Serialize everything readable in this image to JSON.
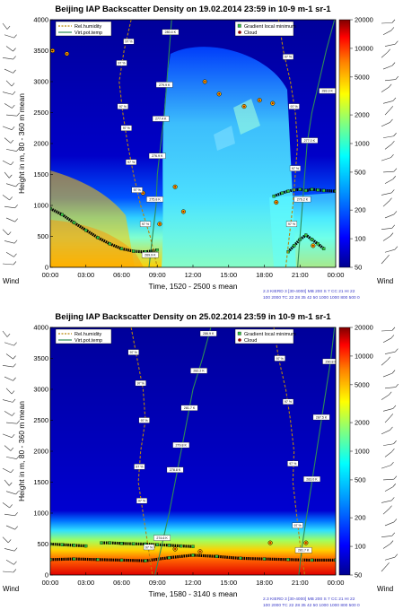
{
  "colors": {
    "relHumidity": "#b8860b",
    "virtPotTemp": "#2e8b57",
    "gradientMarker": "#2fbf3f",
    "cloudMarker": "#8b0000",
    "layerLine": "#000000"
  },
  "chart_data": [
    {
      "type": "heatmap",
      "title": "Beijing IAP Backscatter Density on 19.02.2014 23:59 in 10-9 m-1 sr-1",
      "xlabel": "Time, 1520 - 2500 s mean",
      "ylabel": "Height in m, 80 - 360 m mean",
      "xticks": [
        "00:00",
        "03:00",
        "06:00",
        "09:00",
        "12:00",
        "15:00",
        "18:00",
        "21:00",
        "00:00"
      ],
      "yticks": [
        0,
        500,
        1000,
        1500,
        2000,
        2500,
        3000,
        3500,
        4000
      ],
      "xlim_hours": [
        0,
        24
      ],
      "ylim": [
        0,
        4000
      ],
      "colorbar": {
        "ticks": [
          20000,
          10000,
          5000,
          2000,
          1000,
          500,
          200,
          100,
          50
        ],
        "scale": "log",
        "range": [
          50,
          20000
        ]
      },
      "legend": {
        "placement": "top",
        "items": [
          "Rel.humidity",
          "Virt.pot.temp",
          "Gradient local minimum",
          "Cloud"
        ]
      },
      "wind_label_left": "Wind",
      "wind_label_right": "Wind",
      "footer": [
        "2.3 KIERD 3 [30-4000] MB 200  S 7 CC 21 HI 22",
        "100 2000  TC 22 28 35 42 50 1000 1000 800 500 0"
      ],
      "series": [
        {
          "name": "Rel.humidity",
          "x": [
            6.8,
            6.2,
            5.8,
            6.1,
            6.5,
            7.0,
            7.6,
            8.4,
            9.0
          ],
          "y": [
            4000,
            3500,
            3000,
            2500,
            2000,
            1500,
            1000,
            500,
            0
          ]
        },
        {
          "name": "Virt.pot.temp",
          "x": [
            10.2,
            10.0,
            9.8,
            9.6,
            9.3,
            9.0,
            8.9,
            8.6,
            8.3
          ],
          "y": [
            4000,
            3500,
            3000,
            2500,
            2000,
            1500,
            1000,
            500,
            0
          ]
        },
        {
          "name": "Rel.humidity",
          "x": [
            19.2,
            19.6,
            20.2,
            20.6,
            20.8,
            20.6,
            20.4,
            20.1,
            19.8
          ],
          "y": [
            4000,
            3500,
            3000,
            2500,
            2000,
            1500,
            1000,
            500,
            0
          ]
        },
        {
          "name": "Virt.pot.temp",
          "x": [
            23.9,
            23.2,
            22.6,
            22.0,
            21.6,
            21.4,
            21.2,
            21.0,
            20.8
          ],
          "y": [
            4000,
            3500,
            3000,
            2500,
            2000,
            1500,
            1000,
            500,
            0
          ]
        }
      ],
      "layer_line": {
        "x": [
          0,
          1,
          2,
          3,
          4,
          5,
          6,
          7,
          8,
          9
        ],
        "y": [
          950,
          850,
          720,
          600,
          480,
          380,
          300,
          260,
          250,
          280
        ]
      },
      "layer_line_b": {
        "x": [
          18.8,
          19.5,
          20,
          20.5,
          21,
          21.5,
          22,
          22.5,
          23,
          24
        ],
        "y": [
          1150,
          1200,
          1230,
          1250,
          1260,
          1240,
          1260,
          1250,
          1240,
          1230
        ]
      },
      "layer_line_c": {
        "x": [
          20,
          20.5,
          21,
          21.5,
          22,
          22.5,
          23
        ],
        "y": [
          250,
          350,
          450,
          520,
          450,
          380,
          300
        ]
      },
      "cloud_points": [
        {
          "x": 7.8,
          "y": 1200
        },
        {
          "x": 8.3,
          "y": 1100
        },
        {
          "x": 9.2,
          "y": 700
        },
        {
          "x": 10.5,
          "y": 1300
        },
        {
          "x": 11.2,
          "y": 900
        },
        {
          "x": 13.0,
          "y": 3000
        },
        {
          "x": 14.2,
          "y": 2800
        },
        {
          "x": 16.3,
          "y": 2600
        },
        {
          "x": 17.6,
          "y": 2700
        },
        {
          "x": 18.7,
          "y": 2650
        },
        {
          "x": 0.2,
          "y": 3500
        },
        {
          "x": 1.4,
          "y": 3450
        },
        {
          "x": 19.0,
          "y": 1050
        },
        {
          "x": 22.1,
          "y": 350
        }
      ],
      "annotations": [
        {
          "x": 6.6,
          "y": 3650,
          "text": "97 %"
        },
        {
          "x": 6.0,
          "y": 3300,
          "text": "97 %"
        },
        {
          "x": 6.1,
          "y": 2600,
          "text": "97 %"
        },
        {
          "x": 6.4,
          "y": 2250,
          "text": "97 %"
        },
        {
          "x": 6.8,
          "y": 1700,
          "text": "97 %"
        },
        {
          "x": 7.3,
          "y": 1250,
          "text": "97 %"
        },
        {
          "x": 8.0,
          "y": 700,
          "text": "97 %"
        },
        {
          "x": 10.1,
          "y": 3800,
          "text": "280.4 K"
        },
        {
          "x": 9.6,
          "y": 2950,
          "text": "279.9 K"
        },
        {
          "x": 9.3,
          "y": 2400,
          "text": "277.4 K"
        },
        {
          "x": 9.0,
          "y": 1800,
          "text": "276.9 K"
        },
        {
          "x": 8.8,
          "y": 1100,
          "text": "275.8 K"
        },
        {
          "x": 8.4,
          "y": 200,
          "text": "269.9 K"
        },
        {
          "x": 20.0,
          "y": 3400,
          "text": "97 %"
        },
        {
          "x": 20.5,
          "y": 2600,
          "text": "97 %"
        },
        {
          "x": 20.6,
          "y": 1600,
          "text": "97 %"
        },
        {
          "x": 20.3,
          "y": 700,
          "text": "97 %"
        },
        {
          "x": 23.3,
          "y": 2850,
          "text": "283.3 K"
        },
        {
          "x": 21.8,
          "y": 2050,
          "text": "277.0 K"
        },
        {
          "x": 21.2,
          "y": 1100,
          "text": "276.2 K"
        }
      ]
    },
    {
      "type": "heatmap",
      "title": "Beijing IAP Backscatter Density on 25.02.2014 23:59 in 10-9 m-1 sr-1",
      "xlabel": "Time, 1580 - 3140 s mean",
      "ylabel": "Height in m, 80 - 360 m mean",
      "xticks": [
        "00:00",
        "03:00",
        "06:00",
        "09:00",
        "12:00",
        "15:00",
        "18:00",
        "21:00",
        "00:00"
      ],
      "yticks": [
        0,
        500,
        1000,
        1500,
        2000,
        2500,
        3000,
        3500,
        4000
      ],
      "xlim_hours": [
        0,
        24
      ],
      "ylim": [
        0,
        4000
      ],
      "colorbar": {
        "ticks": [
          20000,
          10000,
          5000,
          2000,
          1000,
          500,
          200,
          100,
          50
        ],
        "scale": "log",
        "range": [
          50,
          20000
        ]
      },
      "legend": {
        "placement": "top",
        "items": [
          "Rel.humidity",
          "Virt.pot.temp",
          "Gradient local minimum",
          "Cloud"
        ]
      },
      "wind_label_left": "Wind",
      "wind_label_right": "Wind",
      "footer": [
        "2.3 KIERD 3 [30-4000] MB 200  S 7 CC 21 HI 22",
        "100 2000  TC 22 28 35 42 50 1000 1000 800 500 0"
      ],
      "series": [
        {
          "name": "Rel.humidity",
          "x": [
            6.8,
            7.3,
            7.8,
            8.0,
            7.6,
            7.4,
            7.8,
            8.2,
            8.6
          ],
          "y": [
            4000,
            3500,
            3000,
            2500,
            2000,
            1500,
            1000,
            500,
            0
          ]
        },
        {
          "name": "Virt.pot.temp",
          "x": [
            13.5,
            12.8,
            12.0,
            11.5,
            11.0,
            10.5,
            10.0,
            9.4,
            8.8
          ],
          "y": [
            4000,
            3500,
            3000,
            2500,
            2000,
            1500,
            1000,
            500,
            0
          ]
        },
        {
          "name": "Rel.humidity",
          "x": [
            18.8,
            19.2,
            19.8,
            20.2,
            20.5,
            20.4,
            20.7,
            21.0,
            21.4
          ],
          "y": [
            4000,
            3500,
            3000,
            2500,
            2000,
            1500,
            1000,
            500,
            0
          ]
        },
        {
          "name": "Virt.pot.temp",
          "x": [
            23.9,
            23.6,
            23.2,
            22.8,
            22.4,
            22.0,
            21.6,
            21.2,
            20.9
          ],
          "y": [
            4000,
            3500,
            3000,
            2500,
            2000,
            1500,
            1000,
            500,
            0
          ]
        }
      ],
      "layer_line": {
        "x": [
          0,
          2,
          4,
          6,
          8,
          10,
          12,
          14,
          16,
          18,
          20,
          22,
          24
        ],
        "y": [
          250,
          260,
          250,
          240,
          230,
          280,
          320,
          300,
          270,
          260,
          250,
          240,
          240
        ]
      },
      "layer_line_b": {
        "x": [
          0,
          1,
          2,
          3
        ],
        "y": [
          500,
          490,
          480,
          470
        ]
      },
      "layer_line_c": {
        "x": [
          4.3,
          5,
          6,
          7,
          8,
          9,
          10,
          11,
          12
        ],
        "y": [
          520,
          520,
          510,
          505,
          500,
          490,
          480,
          470,
          460
        ]
      },
      "cloud_points": [
        {
          "x": 8.6,
          "y": 450
        },
        {
          "x": 10.5,
          "y": 420
        },
        {
          "x": 12.6,
          "y": 380
        },
        {
          "x": 18.5,
          "y": 520
        },
        {
          "x": 21.5,
          "y": 520
        }
      ],
      "annotations": [
        {
          "x": 7.0,
          "y": 3600,
          "text": "97 %"
        },
        {
          "x": 7.6,
          "y": 3100,
          "text": "97 %"
        },
        {
          "x": 7.9,
          "y": 2500,
          "text": "97 %"
        },
        {
          "x": 7.5,
          "y": 1750,
          "text": "97 %"
        },
        {
          "x": 7.7,
          "y": 1200,
          "text": "97 %"
        },
        {
          "x": 8.3,
          "y": 450,
          "text": "97 %"
        },
        {
          "x": 13.3,
          "y": 3900,
          "text": "286.9 K"
        },
        {
          "x": 12.5,
          "y": 3300,
          "text": "282.2 K"
        },
        {
          "x": 11.7,
          "y": 2700,
          "text": "281.7 K"
        },
        {
          "x": 11.0,
          "y": 2100,
          "text": "279.8 K"
        },
        {
          "x": 10.5,
          "y": 1700,
          "text": "278.8 K"
        },
        {
          "x": 9.4,
          "y": 600,
          "text": "274.6 K"
        },
        {
          "x": 19.3,
          "y": 3500,
          "text": "97 %"
        },
        {
          "x": 20.0,
          "y": 2800,
          "text": "97 %"
        },
        {
          "x": 20.4,
          "y": 1800,
          "text": "97 %"
        },
        {
          "x": 20.8,
          "y": 800,
          "text": "97 %"
        },
        {
          "x": 23.6,
          "y": 3450,
          "text": "290.8 K"
        },
        {
          "x": 22.8,
          "y": 2550,
          "text": "287.5 K"
        },
        {
          "x": 22.0,
          "y": 1550,
          "text": "283.0 K"
        },
        {
          "x": 21.3,
          "y": 400,
          "text": "281.7 K"
        }
      ]
    }
  ]
}
